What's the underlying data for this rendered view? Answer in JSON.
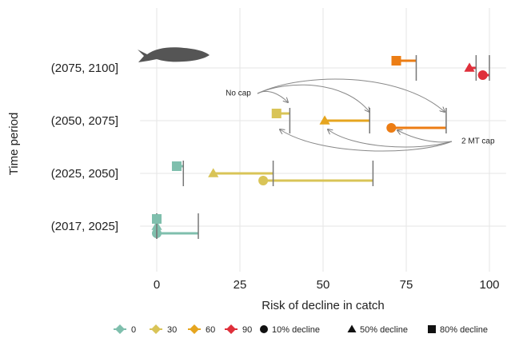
{
  "chart_data": {
    "type": "range-dot",
    "x_label": "Risk of decline in catch",
    "y_label": "Time period",
    "categories": [
      "(2017, 2025]",
      "(2025, 2050]",
      "(2050, 2075]",
      "(2075, 2100]"
    ],
    "xlim": [
      -5,
      105
    ],
    "xticks": [
      0,
      25,
      50,
      75,
      100
    ],
    "grid": true,
    "series": [
      {
        "name": "10% decline",
        "shape": "circle",
        "values": [
          0,
          32,
          70.5,
          98
        ],
        "upper": [
          12.5,
          65,
          87,
          100
        ],
        "colors": [
          "#7fbfad",
          "#d9c457",
          "#ec7d14",
          "#df2f3a"
        ]
      },
      {
        "name": "50% decline",
        "shape": "triangle",
        "values": [
          0,
          17,
          50.5,
          94
        ],
        "upper": [
          0,
          35,
          64,
          96
        ],
        "colors": [
          "#7fbfad",
          "#d9c457",
          "#e6a51f",
          "#df2f3a"
        ]
      },
      {
        "name": "80% decline",
        "shape": "square",
        "values": [
          0,
          6,
          36,
          72
        ],
        "upper": [
          0,
          8,
          40,
          78
        ],
        "colors": [
          "#7fbfad",
          "#7fbfad",
          "#d9c457",
          "#ec7d14"
        ]
      }
    ],
    "color_legend": [
      {
        "label": "0",
        "color": "#7fbfad"
      },
      {
        "label": "30",
        "color": "#d9c457"
      },
      {
        "label": "60",
        "color": "#e6a51f"
      },
      {
        "label": "90",
        "color": "#df2f3a"
      }
    ],
    "annotations": [
      "No cap",
      "2 MT cap"
    ]
  }
}
